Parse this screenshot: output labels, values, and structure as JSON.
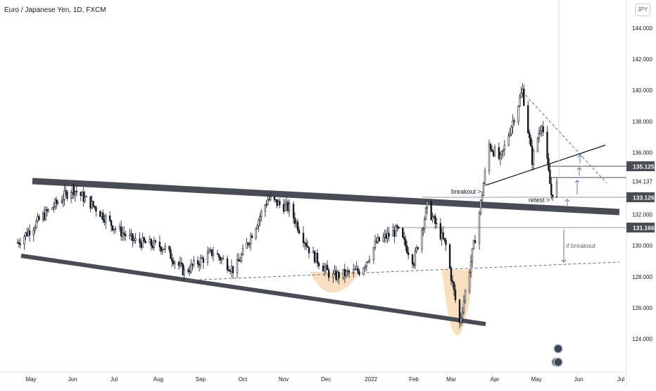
{
  "header": {
    "title": "Euro / Japanese Yen, 1D, FXCM",
    "currency": "JPY"
  },
  "colors": {
    "up": "#131722",
    "down": "#131722",
    "channel": "#4a4c55",
    "highlight": "#f6d7b0",
    "price_tag": "#4a4c55",
    "arrow": "#5b7db8"
  },
  "chart_data": {
    "type": "candlestick",
    "x_ticks": [
      "May",
      "Jun",
      "Jul",
      "Aug",
      "Sep",
      "Oct",
      "Nov",
      "Dec",
      "2022",
      "Feb",
      "Mar",
      "Apr",
      "May",
      "Jun",
      "Jul"
    ],
    "y_ticks": [
      "144.000",
      "142.000",
      "140.000",
      "138.000",
      "136.000",
      "134.137",
      "132.000",
      "130.000",
      "128.000",
      "126.000",
      "124.000"
    ],
    "ylim": [
      122.5,
      145.5
    ],
    "price_tags": [
      "135.125",
      "133.126",
      "131.166"
    ],
    "series_path": [
      [
        "2021-04-21",
        130.2
      ],
      [
        "2021-05-10",
        131.9
      ],
      [
        "2021-06-01",
        133.7
      ],
      [
        "2021-06-18",
        132.4
      ],
      [
        "2021-07-01",
        131.2
      ],
      [
        "2021-07-15",
        130.3
      ],
      [
        "2021-08-05",
        129.9
      ],
      [
        "2021-08-20",
        128.3
      ],
      [
        "2021-09-10",
        129.6
      ],
      [
        "2021-09-25",
        128.4
      ],
      [
        "2021-10-20",
        133.0
      ],
      [
        "2021-11-05",
        132.4
      ],
      [
        "2021-11-20",
        129.6
      ],
      [
        "2021-12-05",
        128.0
      ],
      [
        "2021-12-25",
        128.4
      ],
      [
        "2022-01-05",
        130.2
      ],
      [
        "2022-01-20",
        131.0
      ],
      [
        "2022-02-01",
        129.0
      ],
      [
        "2022-02-11",
        132.5
      ],
      [
        "2022-02-25",
        130.0
      ],
      [
        "2022-03-07",
        125.0
      ],
      [
        "2022-03-20",
        131.5
      ],
      [
        "2022-03-28",
        136.5
      ],
      [
        "2022-04-05",
        135.5
      ],
      [
        "2022-04-21",
        140.0
      ],
      [
        "2022-04-28",
        135.5
      ],
      [
        "2022-05-05",
        138.0
      ],
      [
        "2022-05-12",
        133.3
      ],
      [
        "2022-05-16",
        133.9
      ]
    ],
    "annotations": [
      {
        "id": "breakout",
        "text": "breakout >"
      },
      {
        "id": "retest",
        "text": "retest >"
      },
      {
        "id": "if-breakout",
        "text": "if breakout"
      }
    ]
  }
}
